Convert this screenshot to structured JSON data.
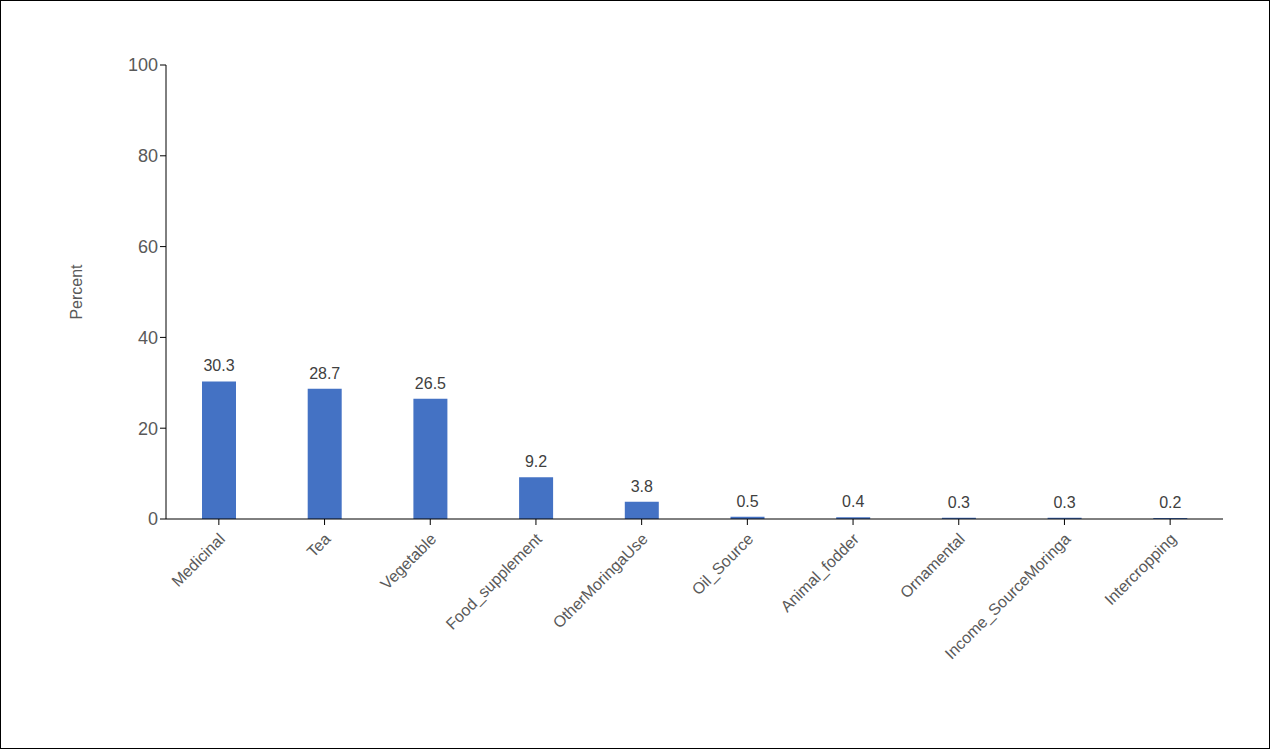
{
  "chart_data": {
    "type": "bar",
    "y_label": "Percent",
    "categories": [
      "Medicinal",
      "Tea",
      "Vegetable",
      "Food_supplement",
      "OtherMoringaUse",
      "Oil_Source",
      "Animal_fodder",
      "Ornamental",
      "Income_SourceMoringa",
      "Intercropping"
    ],
    "values": [
      30.3,
      28.7,
      26.5,
      9.2,
      3.8,
      0.5,
      0.4,
      0.3,
      0.3,
      0.2
    ],
    "color": "#4472c4",
    "ylim": [
      0,
      100
    ],
    "yticks": [
      0,
      20,
      40,
      60,
      80,
      100
    ],
    "grid": false,
    "data_labels": true
  }
}
